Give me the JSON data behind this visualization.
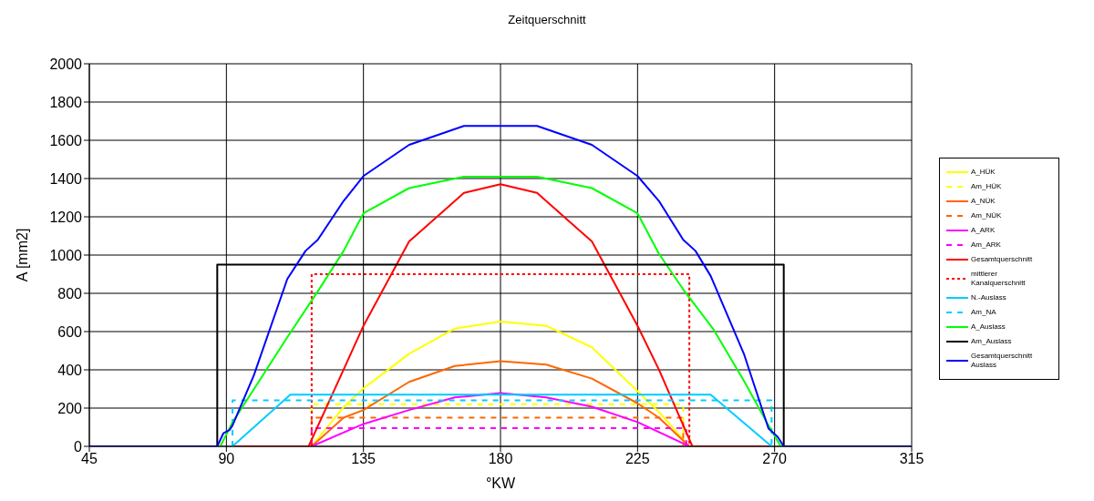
{
  "chart_data": {
    "type": "line",
    "title": "Zeitquerschnitt",
    "xlabel": "°KW",
    "ylabel": "A [mm2]",
    "xlim": [
      45,
      315
    ],
    "xticks": [
      45,
      90,
      135,
      180,
      225,
      270,
      315
    ],
    "ylim": [
      0,
      2000
    ],
    "yticks": [
      0,
      200,
      400,
      600,
      800,
      1000,
      1200,
      1400,
      1600,
      1800,
      2000
    ],
    "grid": true,
    "legend": "right",
    "marker": "none",
    "series": [
      {
        "name": "A_HÜK",
        "color": "#ffff00",
        "line_style": "solid",
        "x": [
          118,
          128.5,
          135,
          150,
          165,
          180,
          195,
          210,
          225,
          232,
          242
        ],
        "values": [
          0,
          205,
          303,
          484,
          616,
          652,
          630,
          518,
          288,
          180,
          0
        ]
      },
      {
        "name": "Am_HÜK",
        "color": "#ffff00",
        "line_style": "dashed",
        "x": [
          118,
          118,
          240,
          240
        ],
        "values": [
          0,
          220,
          220,
          0
        ]
      },
      {
        "name": "A_NÜK",
        "color": "#ff6600",
        "line_style": "solid",
        "x": [
          118,
          128.5,
          135,
          150,
          165,
          180,
          195,
          210,
          225,
          232,
          242
        ],
        "values": [
          0,
          150,
          190,
          337,
          420,
          445,
          427,
          354,
          225,
          150,
          0
        ]
      },
      {
        "name": "Am_NÜK",
        "color": "#ff6600",
        "line_style": "dashed",
        "x": [
          118,
          118,
          240,
          240
        ],
        "values": [
          0,
          150,
          150,
          0
        ]
      },
      {
        "name": "A_ARK",
        "color": "#ff00ff",
        "line_style": "solid",
        "x": [
          118,
          135,
          150,
          165,
          180,
          195,
          210,
          225,
          242
        ],
        "values": [
          0,
          117,
          190,
          256,
          278,
          256,
          207,
          127,
          0
        ]
      },
      {
        "name": "Am_ARK",
        "color": "#ff00ff",
        "line_style": "dashed",
        "x": [
          118,
          118,
          241,
          241
        ],
        "values": [
          0,
          95,
          95,
          0
        ]
      },
      {
        "name": "Gesamtquerschnitt",
        "color": "#ff0000",
        "line_style": "solid",
        "x": [
          92,
          117,
          128.5,
          135,
          150,
          168,
          180,
          192,
          210,
          225,
          232,
          243,
          268
        ],
        "values": [
          0,
          0,
          402,
          630,
          1071,
          1325,
          1370,
          1325,
          1071,
          630,
          402,
          0,
          0
        ]
      },
      {
        "name": "mittlerer Kanalquerschnitt",
        "color": "#ff0000",
        "line_style": "dotted",
        "x": [
          118,
          118,
          242,
          242
        ],
        "values": [
          0,
          900,
          900,
          0
        ]
      },
      {
        "name": "N.-Auslass",
        "color": "#00ccff",
        "line_style": "solid",
        "x": [
          92,
          111,
          249,
          269
        ],
        "values": [
          0,
          270,
          270,
          0
        ]
      },
      {
        "name": "Am_NA",
        "color": "#00ccff",
        "line_style": "dashed",
        "x": [
          92,
          92,
          269,
          269
        ],
        "values": [
          0,
          240,
          240,
          0
        ]
      },
      {
        "name": "A_Auslass",
        "color": "#00ff00",
        "line_style": "solid",
        "x": [
          88,
          92,
          110,
          120,
          128.5,
          135,
          150,
          168,
          192,
          210,
          225,
          232,
          240,
          250,
          260,
          268,
          272
        ],
        "values": [
          0,
          125,
          570,
          810,
          1022,
          1218,
          1350,
          1410,
          1410,
          1350,
          1218,
          1007,
          820,
          610,
          340,
          109,
          0
        ]
      },
      {
        "name": "Am_Auslass",
        "color": "#000000",
        "line_style": "solid",
        "x": [
          45,
          87,
          87,
          273,
          273,
          315
        ],
        "values": [
          0,
          0,
          950,
          950,
          0,
          0
        ]
      },
      {
        "name": "Gesamtquerschnitt Auslass",
        "color": "#0000ff",
        "line_style": "solid",
        "x": [
          45,
          87,
          89,
          91,
          92,
          99,
          110,
          116,
          120,
          128.5,
          135,
          150,
          168,
          192,
          210,
          225,
          232,
          240,
          244,
          249,
          260,
          268,
          271,
          273,
          315
        ],
        "values": [
          0,
          0,
          68,
          85,
          109,
          371,
          875,
          1022,
          1080,
          1283,
          1413,
          1576,
          1675,
          1675,
          1576,
          1413,
          1283,
          1080,
          1022,
          891,
          480,
          93,
          50,
          0,
          0
        ]
      }
    ]
  }
}
